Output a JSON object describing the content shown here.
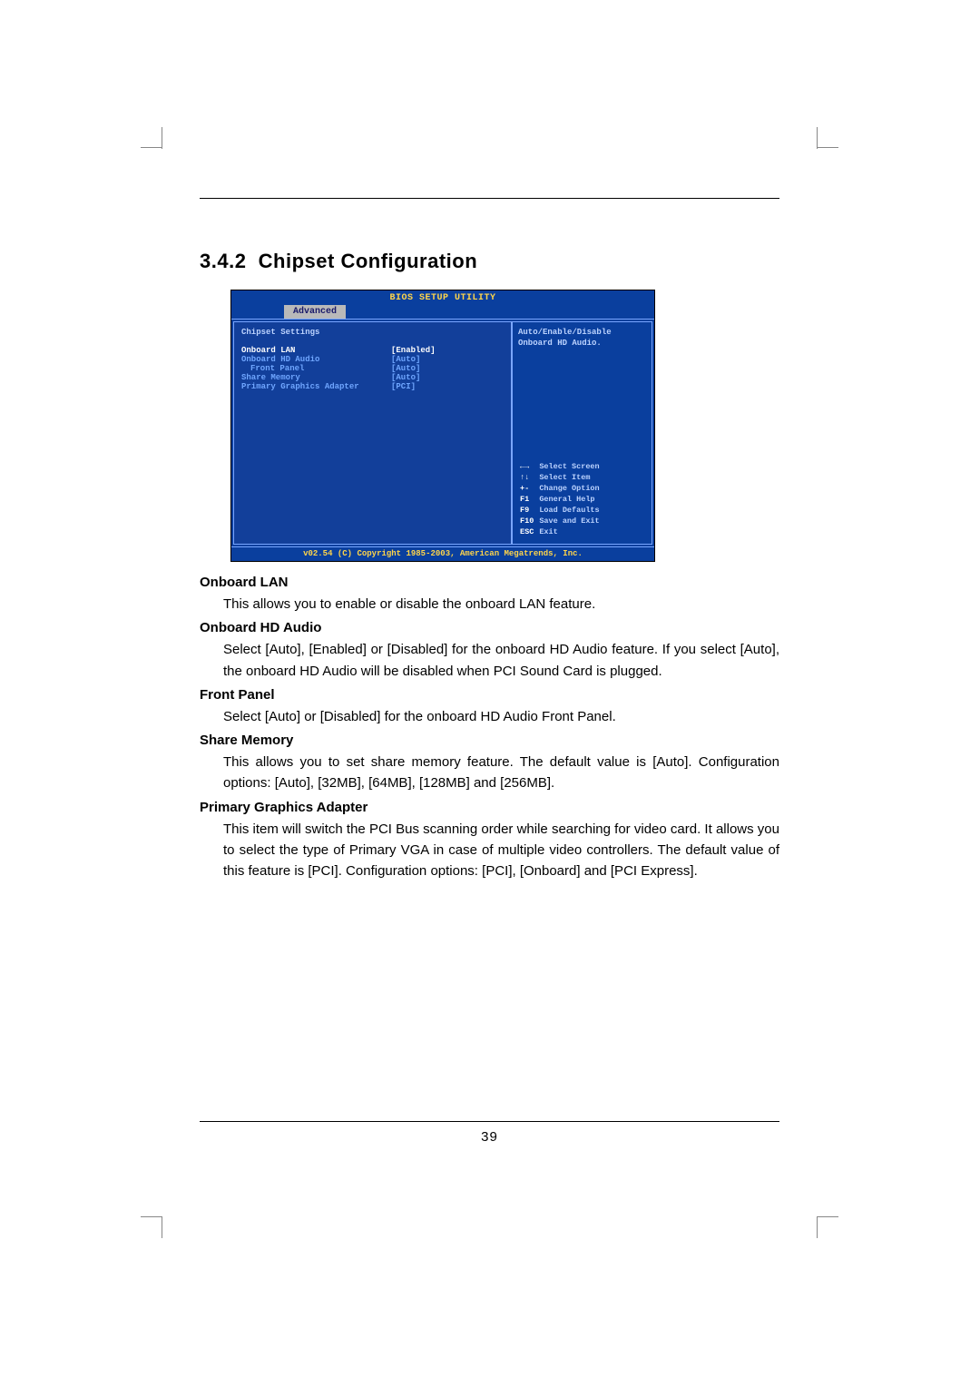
{
  "section": {
    "number": "3.4.2",
    "title": "Chipset Configuration"
  },
  "bios": {
    "title": "BIOS SETUP UTILITY",
    "active_tab": "Advanced",
    "subtitle": "Chipset Settings",
    "rows": [
      {
        "label": "Onboard LAN",
        "value": "[Enabled]",
        "cls": "selected"
      },
      {
        "label": "Onboard HD Audio",
        "value": "[Auto]",
        "cls": "normal"
      },
      {
        "label": "Front Panel",
        "value": "[Auto]",
        "cls": "sub"
      },
      {
        "label": "Share Memory",
        "value": "[Auto]",
        "cls": "normal"
      },
      {
        "label": "Primary Graphics Adapter",
        "value": "[PCI]",
        "cls": "normal"
      }
    ],
    "help_top": "Auto/Enable/Disable\nOnboard HD Audio.",
    "keys": [
      {
        "k": "←→",
        "d": "Select Screen"
      },
      {
        "k": "↑↓",
        "d": "Select Item"
      },
      {
        "k": "+-",
        "d": "Change Option"
      },
      {
        "k": "F1",
        "d": "General Help"
      },
      {
        "k": "F9",
        "d": "Load Defaults"
      },
      {
        "k": "F10",
        "d": "Save and Exit"
      },
      {
        "k": "ESC",
        "d": "Exit"
      }
    ],
    "copyright": "v02.54 (C) Copyright 1985-2003, American Megatrends, Inc."
  },
  "options": [
    {
      "title": "Onboard LAN",
      "body": "This allows you to enable or disable the onboard LAN feature."
    },
    {
      "title": "Onboard HD Audio",
      "body": "Select [Auto], [Enabled] or [Disabled] for the onboard HD Audio feature. If you select [Auto], the onboard HD Audio will be disabled when PCI Sound Card is plugged."
    },
    {
      "title": "Front Panel",
      "body": "Select [Auto] or [Disabled] for the onboard HD Audio Front Panel."
    },
    {
      "title": "Share Memory",
      "body": "This allows you to set share memory feature. The default value is [Auto]. Configuration options: [Auto], [32MB], [64MB], [128MB] and [256MB]."
    },
    {
      "title": "Primary Graphics Adapter",
      "body": "This item will switch the PCI Bus scanning order while searching for video card. It allows you to select the type of Primary VGA in case of multiple video controllers. The default value of this feature is [PCI]. Configuration options: [PCI], [Onboard] and [PCI Express]."
    }
  ],
  "page_number": "39"
}
